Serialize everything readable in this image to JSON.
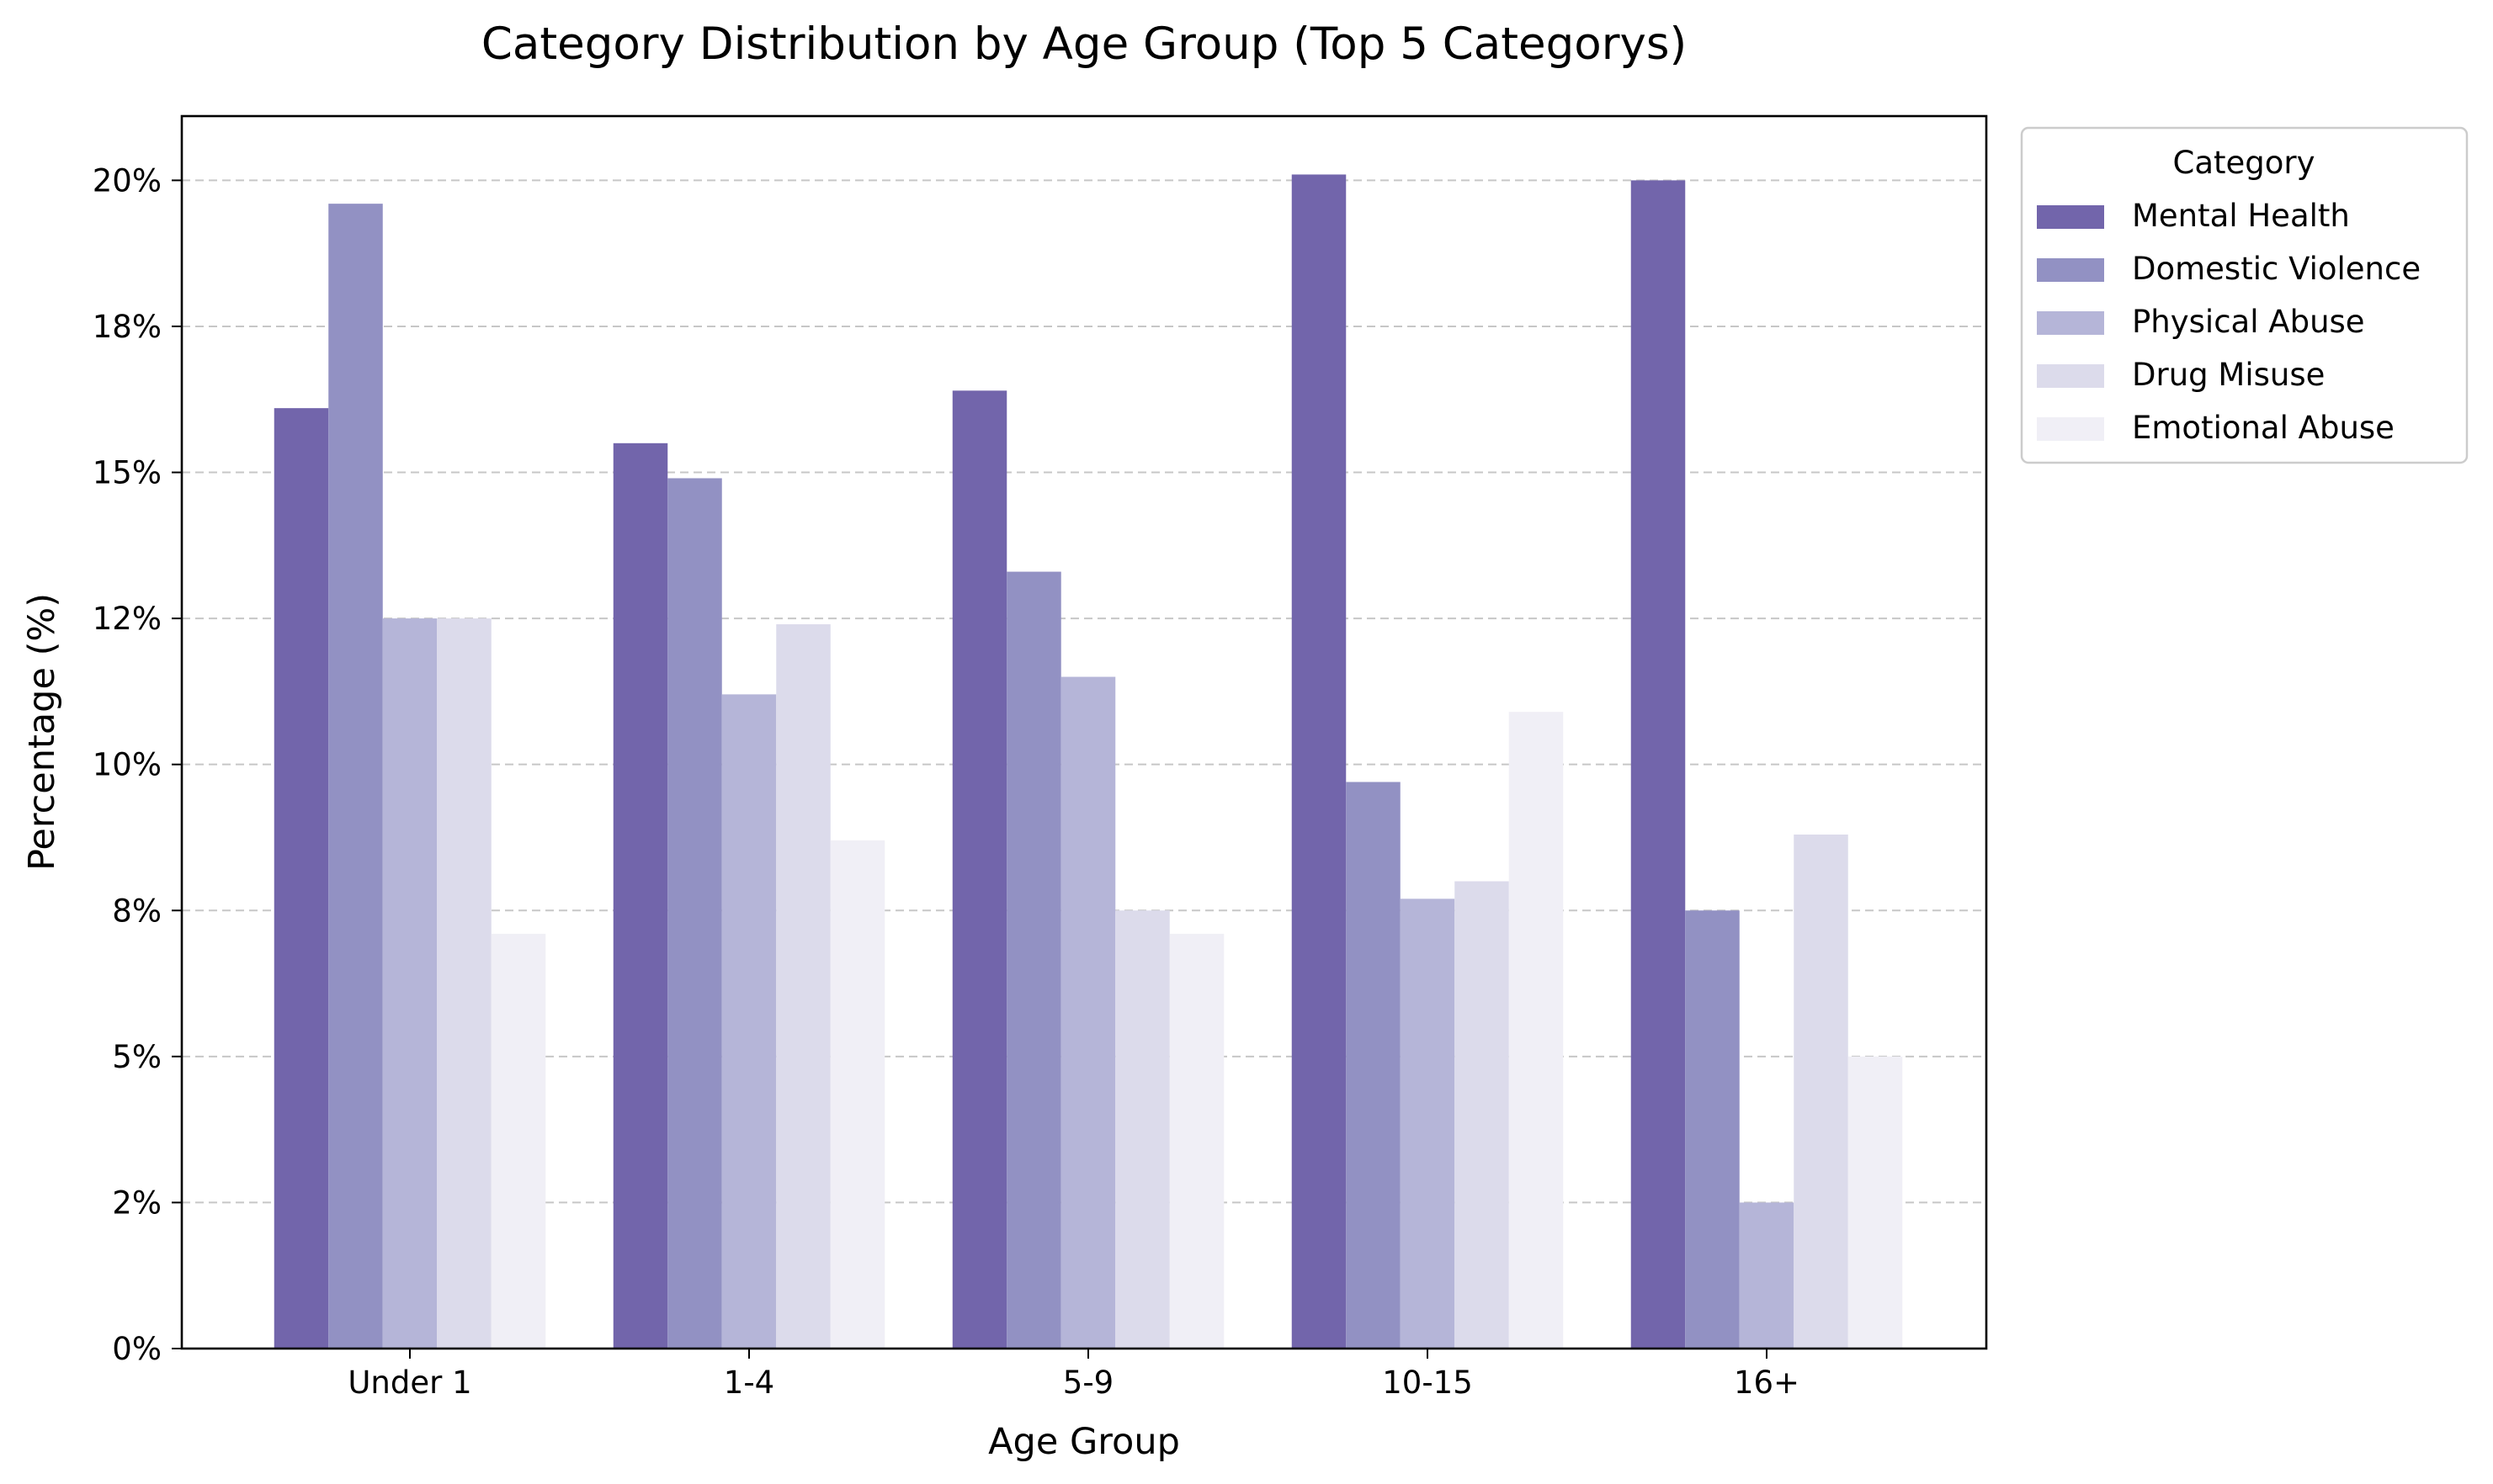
{
  "chart_data": {
    "type": "bar",
    "title": "Category Distribution by Age Group (Top 5 Categorys)",
    "xlabel": "Age Group",
    "ylabel": "Percentage (%)",
    "categories": [
      "Under 1",
      "1-4",
      "5-9",
      "10-15",
      "16+"
    ],
    "ylim": [
      0,
      21.1
    ],
    "yticks": [
      0,
      2.5,
      5,
      7.5,
      10,
      12.5,
      15,
      17.5,
      20
    ],
    "ytick_labels": [
      "0%",
      "2%",
      "5%",
      "8%",
      "10%",
      "12%",
      "15%",
      "18%",
      "20%"
    ],
    "grid": "horizontal dashed",
    "legend": {
      "title": "Category",
      "placement": "outside top-right"
    },
    "series": [
      {
        "name": "Mental Health",
        "color": "#7265ab",
        "values": [
          16.1,
          15.5,
          16.4,
          20.1,
          20.0
        ]
      },
      {
        "name": "Domestic Violence",
        "color": "#9291c3",
        "values": [
          19.6,
          14.9,
          13.3,
          9.7,
          7.5
        ]
      },
      {
        "name": "Physical Abuse",
        "color": "#b5b5d8",
        "values": [
          12.5,
          11.2,
          11.5,
          7.7,
          2.5
        ]
      },
      {
        "name": "Drug Misuse",
        "color": "#dcdbeb",
        "values": [
          12.5,
          12.4,
          7.5,
          8.0,
          8.8
        ]
      },
      {
        "name": "Emotional Abuse",
        "color": "#f0eff6",
        "values": [
          7.1,
          8.7,
          7.1,
          10.9,
          5.0
        ]
      }
    ]
  }
}
